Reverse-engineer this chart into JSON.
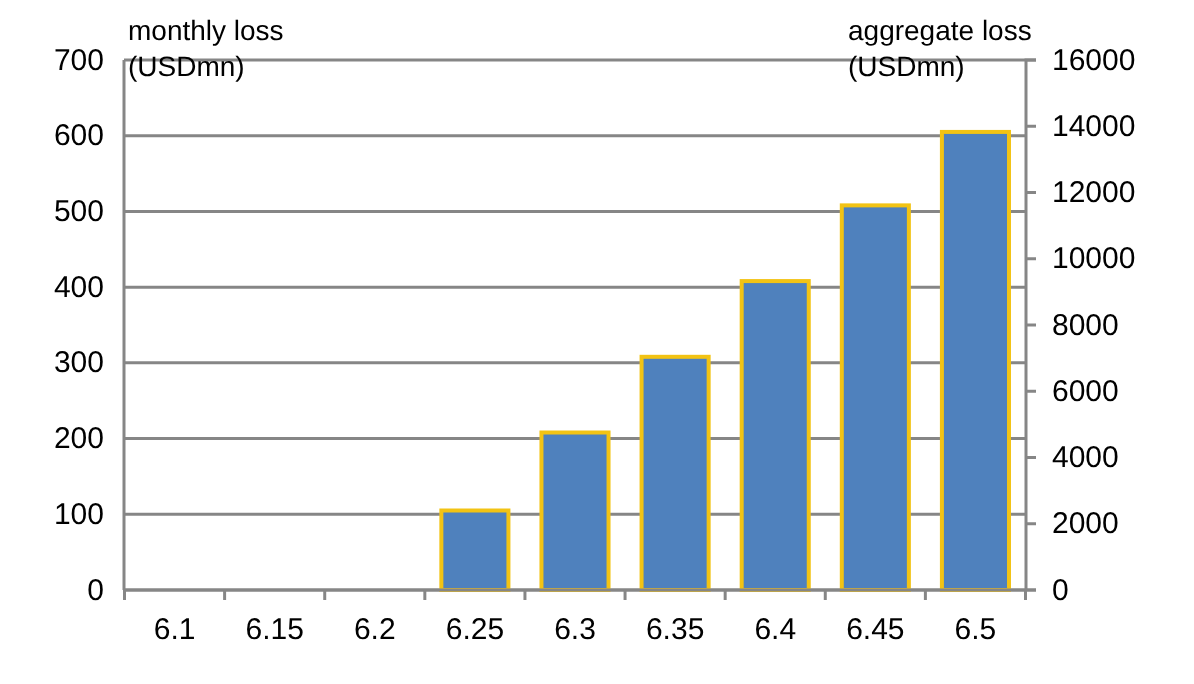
{
  "chart_data": {
    "type": "bar",
    "ylabel": "monthly loss (USDmn)",
    "y2label": "aggregate loss (USDmn)",
    "categories": [
      "6.1",
      "6.15",
      "6.2",
      "6.25",
      "6.3",
      "6.35",
      "6.4",
      "6.45",
      "6.5"
    ],
    "series": [
      {
        "color": "#4f81bd",
        "values": [
          0,
          0,
          0,
          105,
          208,
          308,
          408,
          508,
          605
        ]
      }
    ],
    "ylim": [
      0,
      700
    ],
    "yticks": [
      0,
      100,
      200,
      300,
      400,
      500,
      600,
      700
    ],
    "y2lim": [
      0,
      16000
    ],
    "y2ticks": [
      0,
      2000,
      4000,
      6000,
      8000,
      10000,
      12000,
      14000,
      16000
    ],
    "grid": "y"
  }
}
